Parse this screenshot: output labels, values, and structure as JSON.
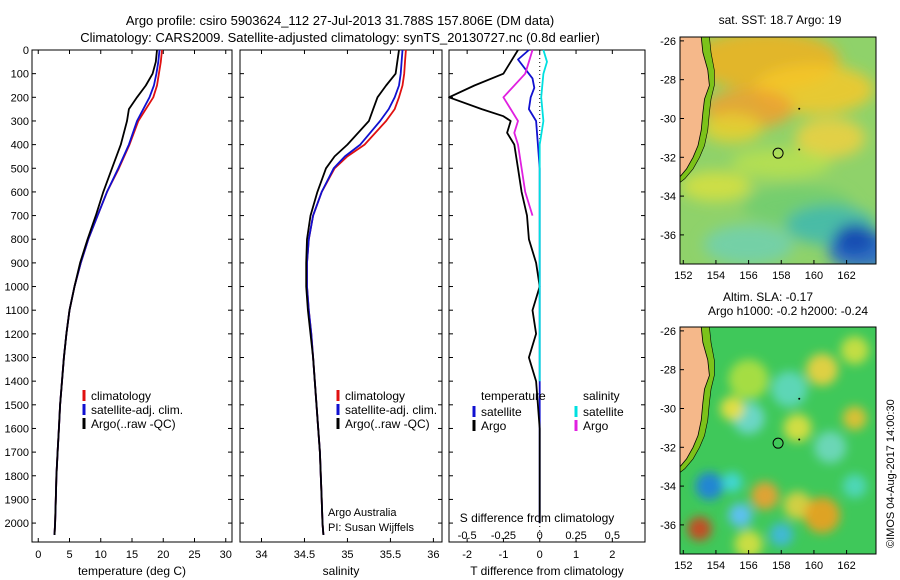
{
  "header": {
    "line1": "Argo profile: csiro 5903624_112 27-Jul-2013 31.788S 157.806E (DM data)",
    "line2": "Climatology: CARS2009. Satellite-adjusted climatology: synTS_20130727.nc (0.8d earlier)"
  },
  "credit": "©IMOS 04-Aug-2017 14:00:30",
  "colors": {
    "climatology": "#e01010",
    "satellite_adj": "#1010d0",
    "argo": "#000000",
    "sal_satellite": "#00e0e0",
    "sal_argo": "#e020e0",
    "land": "#f5b88a",
    "shelf_green": "#7cc21a"
  },
  "chart_data": [
    {
      "type": "line",
      "id": "temperature",
      "xlabel": "temperature (deg C)",
      "ylabel": "",
      "xlim": [
        -1,
        31
      ],
      "ylim": [
        2080,
        0
      ],
      "xticks": [
        0,
        5,
        10,
        15,
        20,
        25,
        30
      ],
      "yticks": [
        0,
        100,
        200,
        300,
        400,
        500,
        600,
        700,
        800,
        900,
        1000,
        1100,
        1200,
        1300,
        1400,
        1500,
        1600,
        1700,
        1800,
        1900,
        2000
      ],
      "legend": [
        "climatology",
        "satellite-adj. clim.",
        "Argo(..raw -QC)"
      ],
      "series": [
        {
          "name": "climatology",
          "color": "#e01010",
          "points": [
            [
              19.8,
              0
            ],
            [
              19.6,
              50
            ],
            [
              19.3,
              100
            ],
            [
              19.0,
              150
            ],
            [
              18.4,
              200
            ],
            [
              17.2,
              250
            ],
            [
              16.0,
              300
            ],
            [
              14.6,
              400
            ],
            [
              12.9,
              500
            ],
            [
              11.0,
              600
            ],
            [
              9.5,
              700
            ],
            [
              8.0,
              800
            ],
            [
              6.8,
              900
            ],
            [
              5.8,
              1000
            ],
            [
              5.0,
              1100
            ],
            [
              4.5,
              1200
            ],
            [
              4.1,
              1300
            ],
            [
              3.8,
              1400
            ],
            [
              3.5,
              1500
            ],
            [
              3.3,
              1600
            ],
            [
              3.1,
              1700
            ],
            [
              2.9,
              1800
            ],
            [
              2.8,
              1900
            ],
            [
              2.7,
              2000
            ],
            [
              2.6,
              2050
            ]
          ]
        },
        {
          "name": "satellite-adj. clim.",
          "color": "#1010d0",
          "points": [
            [
              19.4,
              0
            ],
            [
              19.2,
              50
            ],
            [
              18.9,
              100
            ],
            [
              18.5,
              150
            ],
            [
              17.8,
              200
            ],
            [
              16.8,
              250
            ],
            [
              15.8,
              300
            ],
            [
              14.5,
              400
            ],
            [
              12.8,
              500
            ],
            [
              11.0,
              600
            ],
            [
              9.5,
              700
            ],
            [
              8.0,
              800
            ],
            [
              6.8,
              900
            ],
            [
              5.8,
              1000
            ],
            [
              5.0,
              1100
            ],
            [
              4.5,
              1200
            ],
            [
              4.1,
              1300
            ],
            [
              3.8,
              1400
            ],
            [
              3.5,
              1500
            ],
            [
              3.3,
              1600
            ],
            [
              3.1,
              1700
            ],
            [
              2.9,
              1800
            ],
            [
              2.8,
              1900
            ],
            [
              2.7,
              2000
            ],
            [
              2.6,
              2050
            ]
          ]
        },
        {
          "name": "Argo(..raw -QC)",
          "color": "#000000",
          "points": [
            [
              19.0,
              0
            ],
            [
              18.8,
              50
            ],
            [
              18.3,
              100
            ],
            [
              17.2,
              150
            ],
            [
              15.8,
              200
            ],
            [
              14.5,
              250
            ],
            [
              14.2,
              300
            ],
            [
              13.2,
              400
            ],
            [
              11.8,
              500
            ],
            [
              10.4,
              600
            ],
            [
              9.2,
              700
            ],
            [
              7.9,
              800
            ],
            [
              6.7,
              900
            ],
            [
              5.8,
              1000
            ],
            [
              5.0,
              1100
            ],
            [
              4.5,
              1200
            ],
            [
              4.1,
              1300
            ],
            [
              3.8,
              1400
            ],
            [
              3.5,
              1500
            ],
            [
              3.3,
              1600
            ],
            [
              3.1,
              1700
            ],
            [
              2.9,
              1800
            ],
            [
              2.8,
              1900
            ],
            [
              2.7,
              2000
            ],
            [
              2.6,
              2050
            ]
          ]
        }
      ]
    },
    {
      "type": "line",
      "id": "salinity",
      "xlabel": "salinity",
      "xlim": [
        33.75,
        36.1
      ],
      "ylim": [
        2080,
        0
      ],
      "xticks": [
        34,
        34.5,
        35,
        35.5,
        36
      ],
      "legend": [
        "climatology",
        "satellite-adj. clim.",
        "Argo(..raw -QC)"
      ],
      "annotation": [
        "Argo Australia",
        "PI: Susan Wijffels"
      ],
      "series": [
        {
          "name": "climatology",
          "color": "#e01010",
          "points": [
            [
              35.68,
              0
            ],
            [
              35.67,
              50
            ],
            [
              35.66,
              100
            ],
            [
              35.64,
              150
            ],
            [
              35.6,
              200
            ],
            [
              35.55,
              250
            ],
            [
              35.45,
              300
            ],
            [
              35.2,
              400
            ],
            [
              35.0,
              450
            ],
            [
              34.85,
              500
            ],
            [
              34.7,
              600
            ],
            [
              34.6,
              700
            ],
            [
              34.55,
              800
            ],
            [
              34.53,
              900
            ],
            [
              34.53,
              1000
            ],
            [
              34.55,
              1100
            ],
            [
              34.58,
              1200
            ],
            [
              34.6,
              1300
            ],
            [
              34.62,
              1400
            ],
            [
              34.64,
              1500
            ],
            [
              34.66,
              1600
            ],
            [
              34.68,
              1700
            ],
            [
              34.69,
              1800
            ],
            [
              34.7,
              1900
            ],
            [
              34.71,
              2000
            ],
            [
              34.72,
              2050
            ]
          ]
        },
        {
          "name": "satellite-adj. clim.",
          "color": "#1010d0",
          "points": [
            [
              35.64,
              0
            ],
            [
              35.63,
              50
            ],
            [
              35.62,
              100
            ],
            [
              35.6,
              150
            ],
            [
              35.55,
              200
            ],
            [
              35.48,
              250
            ],
            [
              35.38,
              300
            ],
            [
              35.15,
              400
            ],
            [
              34.97,
              450
            ],
            [
              34.84,
              500
            ],
            [
              34.7,
              600
            ],
            [
              34.6,
              700
            ],
            [
              34.55,
              800
            ],
            [
              34.53,
              900
            ],
            [
              34.53,
              1000
            ],
            [
              34.55,
              1100
            ],
            [
              34.58,
              1200
            ],
            [
              34.6,
              1300
            ],
            [
              34.62,
              1400
            ],
            [
              34.64,
              1500
            ],
            [
              34.66,
              1600
            ],
            [
              34.68,
              1700
            ],
            [
              34.69,
              1800
            ],
            [
              34.7,
              1900
            ],
            [
              34.71,
              2000
            ],
            [
              34.72,
              2050
            ]
          ]
        },
        {
          "name": "Argo(..raw -QC)",
          "color": "#000000",
          "points": [
            [
              35.6,
              0
            ],
            [
              35.58,
              50
            ],
            [
              35.56,
              100
            ],
            [
              35.45,
              150
            ],
            [
              35.35,
              200
            ],
            [
              35.3,
              250
            ],
            [
              35.25,
              300
            ],
            [
              35.0,
              400
            ],
            [
              34.85,
              450
            ],
            [
              34.75,
              500
            ],
            [
              34.65,
              600
            ],
            [
              34.57,
              700
            ],
            [
              34.53,
              800
            ],
            [
              34.52,
              900
            ],
            [
              34.52,
              1000
            ],
            [
              34.54,
              1100
            ],
            [
              34.57,
              1200
            ],
            [
              34.6,
              1300
            ],
            [
              34.62,
              1400
            ],
            [
              34.64,
              1500
            ],
            [
              34.66,
              1600
            ],
            [
              34.68,
              1700
            ],
            [
              34.69,
              1800
            ],
            [
              34.7,
              1900
            ],
            [
              34.71,
              2000
            ],
            [
              34.72,
              2050
            ]
          ]
        }
      ]
    },
    {
      "type": "line",
      "id": "difference",
      "xlabel": "T difference from climatology",
      "xlabel_top": "S difference from climatology",
      "xlim": [
        -2.5,
        2.9
      ],
      "ylim": [
        2080,
        0
      ],
      "xticks": [
        -2,
        -1,
        0,
        1,
        2
      ],
      "sticks": [
        [
          -0.5,
          "-0.5"
        ],
        [
          -0.25,
          "-0.25"
        ],
        [
          0,
          "0"
        ],
        [
          0.25,
          "0.25"
        ],
        [
          0.5,
          "0.5"
        ]
      ],
      "s_scale": 4,
      "legend_t_title": "temperature",
      "legend_s_title": "salinity",
      "legend_t": [
        "satellite",
        "Argo"
      ],
      "legend_s": [
        "satellite",
        "Argo"
      ],
      "series": [
        {
          "name": "satellite",
          "group": "temperature",
          "color": "#1010d0",
          "points": [
            [
              -0.3,
              0
            ],
            [
              -0.6,
              40
            ],
            [
              -0.4,
              80
            ],
            [
              -0.2,
              120
            ],
            [
              -0.15,
              160
            ],
            [
              -0.25,
              200
            ],
            [
              -0.3,
              250
            ],
            [
              -0.1,
              300
            ],
            [
              -0.05,
              400
            ],
            [
              0,
              500
            ],
            [
              0,
              700
            ],
            [
              0,
              1000
            ],
            [
              0,
              1500
            ],
            [
              0,
              2000
            ]
          ]
        },
        {
          "name": "Argo",
          "group": "temperature",
          "color": "#000000",
          "points": [
            [
              -0.6,
              0
            ],
            [
              -0.8,
              50
            ],
            [
              -1.0,
              100
            ],
            [
              -1.8,
              150
            ],
            [
              -2.5,
              200
            ],
            [
              -1.6,
              250
            ],
            [
              -1.0,
              280
            ],
            [
              -0.8,
              300
            ],
            [
              -0.9,
              350
            ],
            [
              -0.7,
              400
            ],
            [
              -0.6,
              500
            ],
            [
              -0.5,
              600
            ],
            [
              -0.35,
              700
            ],
            [
              -0.3,
              800
            ],
            [
              -0.1,
              900
            ],
            [
              0,
              1000
            ],
            [
              -0.2,
              1100
            ],
            [
              -0.1,
              1200
            ],
            [
              -0.3,
              1300
            ],
            [
              -0.1,
              1400
            ],
            [
              -0.05,
              1500
            ],
            [
              0,
              1600
            ],
            [
              0,
              2000
            ]
          ]
        },
        {
          "name": "satellite",
          "group": "salinity",
          "color": "#00e0e0",
          "points": [
            [
              0.025,
              0
            ],
            [
              0.05,
              50
            ],
            [
              0.025,
              100
            ],
            [
              0.01,
              200
            ],
            [
              0.025,
              300
            ],
            [
              0,
              400
            ],
            [
              0,
              600
            ],
            [
              0,
              800
            ],
            [
              0,
              1100
            ],
            [
              0,
              1400
            ]
          ]
        },
        {
          "name": "Argo",
          "group": "salinity",
          "color": "#e020e0",
          "points": [
            [
              -0.05,
              0
            ],
            [
              -0.075,
              50
            ],
            [
              -0.1,
              100
            ],
            [
              -0.175,
              150
            ],
            [
              -0.25,
              200
            ],
            [
              -0.2,
              250
            ],
            [
              -0.15,
              300
            ],
            [
              -0.175,
              350
            ],
            [
              -0.15,
              400
            ],
            [
              -0.125,
              500
            ],
            [
              -0.1,
              600
            ],
            [
              -0.05,
              700
            ]
          ]
        }
      ]
    },
    {
      "type": "heatmap",
      "id": "sst-map",
      "title": "sat. SST: 18.7 Argo: 19",
      "xlim": [
        151.8,
        163.8
      ],
      "ylim": [
        -37.5,
        -25.8
      ],
      "xticks": [
        152,
        154,
        156,
        158,
        160,
        162
      ],
      "yticks": [
        -26,
        -28,
        -30,
        -32,
        -34,
        -36
      ],
      "argo_position": [
        157.806,
        -31.788
      ]
    },
    {
      "type": "heatmap",
      "id": "sla-map",
      "title_line1": "Altim. SLA: -0.17",
      "title_line2": "Argo h1000: -0.2 h2000: -0.24",
      "xlim": [
        151.8,
        163.8
      ],
      "ylim": [
        -37.5,
        -25.8
      ],
      "xticks": [
        152,
        154,
        156,
        158,
        160,
        162
      ],
      "yticks": [
        -26,
        -28,
        -30,
        -32,
        -34,
        -36
      ],
      "argo_position": [
        157.806,
        -31.788
      ]
    }
  ]
}
